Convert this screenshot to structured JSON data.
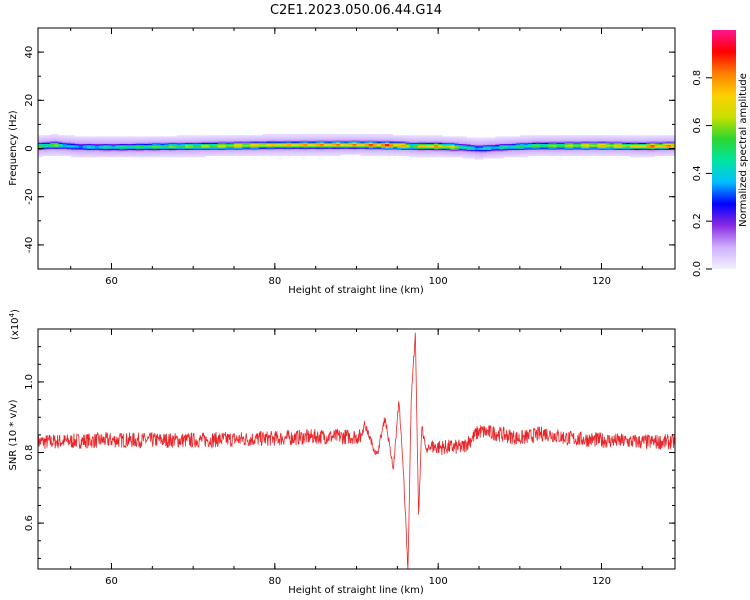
{
  "title": "C2E1.2023.050.06.44.G14",
  "chart_data": [
    {
      "type": "heatmap",
      "xlabel": "Height of straight line (km)",
      "ylabel": "Frequency (Hz)",
      "xlim": [
        51,
        129
      ],
      "ylim": [
        -50,
        50
      ],
      "xticks": [
        60,
        80,
        100,
        120
      ],
      "yticks": [
        40,
        20,
        0,
        -20,
        -40
      ],
      "colorbar": {
        "label": "Normalized spectral amplitude",
        "range": [
          0,
          1
        ],
        "ticks": [
          "0.0",
          "0.2",
          "0.4",
          "0.6",
          "0.8"
        ],
        "colors": [
          "#f2f2ff",
          "#d0b0ff",
          "#8a2be2",
          "#0000ff",
          "#00bfff",
          "#00e5a0",
          "#2ed62e",
          "#c8e000",
          "#ffd000",
          "#ff7f00",
          "#ff0000",
          "#ff1493"
        ]
      },
      "band": {
        "center_hz": [
          [
            51,
            1.0
          ],
          [
            53,
            1.5
          ],
          [
            56,
            0.8
          ],
          [
            60,
            0.6
          ],
          [
            70,
            1.0
          ],
          [
            80,
            1.5
          ],
          [
            90,
            1.6
          ],
          [
            95,
            1.4
          ],
          [
            97,
            1.0
          ],
          [
            100,
            1.0
          ],
          [
            103,
            0.6
          ],
          [
            105,
            0.0
          ],
          [
            108,
            0.6
          ],
          [
            112,
            1.2
          ],
          [
            120,
            1.3
          ],
          [
            125,
            1.0
          ],
          [
            129,
            1.2
          ]
        ],
        "peak_amplitude": [
          [
            51,
            0.55
          ],
          [
            53,
            0.65
          ],
          [
            55,
            0.4
          ],
          [
            60,
            0.5
          ],
          [
            65,
            0.6
          ],
          [
            70,
            0.65
          ],
          [
            75,
            0.75
          ],
          [
            80,
            0.8
          ],
          [
            85,
            0.85
          ],
          [
            90,
            0.85
          ],
          [
            94,
            0.95
          ],
          [
            96,
            0.8
          ],
          [
            97,
            0.6
          ],
          [
            98,
            0.85
          ],
          [
            100,
            0.85
          ],
          [
            102,
            0.7
          ],
          [
            104,
            0.45
          ],
          [
            106,
            0.45
          ],
          [
            108,
            0.5
          ],
          [
            112,
            0.6
          ],
          [
            116,
            0.7
          ],
          [
            120,
            0.8
          ],
          [
            124,
            0.75
          ],
          [
            126,
            0.9
          ],
          [
            129,
            0.85
          ]
        ]
      }
    },
    {
      "type": "line",
      "xlabel": "Height of straight line (km)",
      "ylabel": "SNR (10 * v/v)",
      "ylabel_multiplier": "(x10^4)",
      "xlim": [
        51,
        129
      ],
      "ylim": [
        0.47,
        1.15
      ],
      "xticks": [
        60,
        80,
        100,
        120
      ],
      "yticks": [
        "0.6",
        "0.8",
        "1.0"
      ],
      "line_color": "#e8262a",
      "baseline": [
        [
          51,
          0.83
        ],
        [
          60,
          0.835
        ],
        [
          70,
          0.835
        ],
        [
          80,
          0.84
        ],
        [
          85,
          0.845
        ],
        [
          90,
          0.845
        ],
        [
          94,
          0.84
        ],
        [
          98,
          0.82
        ],
        [
          100,
          0.815
        ],
        [
          103,
          0.815
        ],
        [
          105,
          0.86
        ],
        [
          107,
          0.855
        ],
        [
          110,
          0.84
        ],
        [
          113,
          0.855
        ],
        [
          116,
          0.84
        ],
        [
          120,
          0.835
        ],
        [
          125,
          0.83
        ],
        [
          129,
          0.83
        ]
      ],
      "features": [
        {
          "x": 91.0,
          "y": 0.88
        },
        {
          "x": 92.5,
          "y": 0.79
        },
        {
          "x": 93.5,
          "y": 0.9
        },
        {
          "x": 94.5,
          "y": 0.75
        },
        {
          "x": 95.2,
          "y": 0.95
        },
        {
          "x": 95.8,
          "y": 0.72
        },
        {
          "x": 96.3,
          "y": 0.47
        },
        {
          "x": 96.7,
          "y": 0.95
        },
        {
          "x": 97.2,
          "y": 1.14
        },
        {
          "x": 97.6,
          "y": 0.62
        },
        {
          "x": 98.0,
          "y": 0.88
        },
        {
          "x": 98.5,
          "y": 0.8
        }
      ],
      "noise_amplitude": 0.022
    }
  ]
}
